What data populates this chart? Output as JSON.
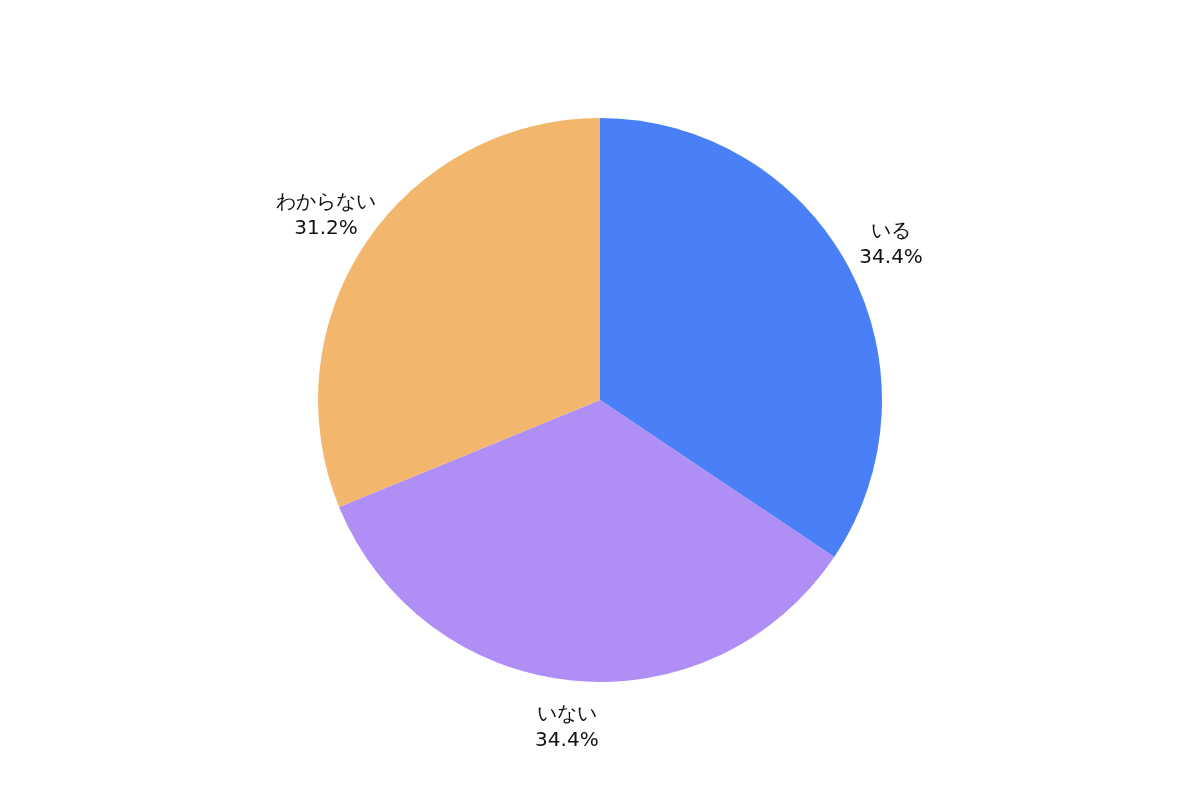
{
  "chart_data": {
    "type": "pie",
    "categories": [
      "いる",
      "いない",
      "わからない"
    ],
    "values": [
      34.4,
      34.4,
      31.2
    ],
    "colors": [
      "#4a80f7",
      "#af8ef5",
      "#f2b76c"
    ],
    "value_labels": [
      "34.4%",
      "34.4%",
      "31.2%"
    ],
    "legend": false
  }
}
